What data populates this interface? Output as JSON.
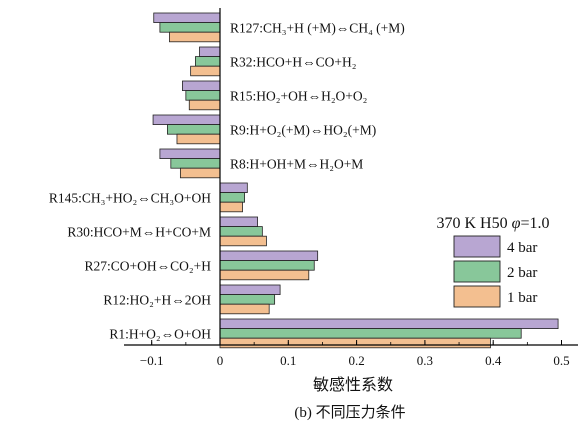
{
  "chart_data": {
    "type": "bar",
    "orientation": "horizontal",
    "categories": [
      "R127:CH₃+H (+M)⇔CH₄ (+M)",
      "R32:HCO+H⇔CO+H₂",
      "R15:HO₂+OH⇔H₂O+O₂",
      "R9:H+O₂(+M)⇔HO₂(+M)",
      "R8:H+OH+M⇔H₂O+M",
      "R145:CH₃+HO₂⇔CH₃O+OH",
      "R30:HCO+M⇔H+CO+M",
      "R27:CO+OH⇔CO₂+H",
      "R12:HO₂+H⇔2OH",
      "R1:H+O₂⇔O+OH"
    ],
    "series": [
      {
        "name": "4 bar",
        "color": "#b8a6d2",
        "values": [
          -0.097,
          -0.03,
          -0.055,
          -0.098,
          -0.088,
          0.04,
          0.055,
          0.143,
          0.088,
          0.495
        ]
      },
      {
        "name": "2 bar",
        "color": "#88c79a",
        "values": [
          -0.088,
          -0.036,
          -0.05,
          -0.077,
          -0.072,
          0.036,
          0.062,
          0.138,
          0.08,
          0.441
        ]
      },
      {
        "name": "1 bar",
        "color": "#f3bf90",
        "values": [
          -0.074,
          -0.043,
          -0.045,
          -0.063,
          -0.058,
          0.033,
          0.068,
          0.13,
          0.072,
          0.396
        ]
      }
    ],
    "x_ticks": [
      "-0.1",
      "0",
      "0.1",
      "0.2",
      "0.3",
      "0.4",
      "0.5"
    ],
    "xlim": [
      -0.125,
      0.515
    ],
    "xlabel": "敏感性系数",
    "legend_title": "370 K H50 φ=1.0",
    "legend_position": "right"
  },
  "caption": "(b) 不同压力条件"
}
